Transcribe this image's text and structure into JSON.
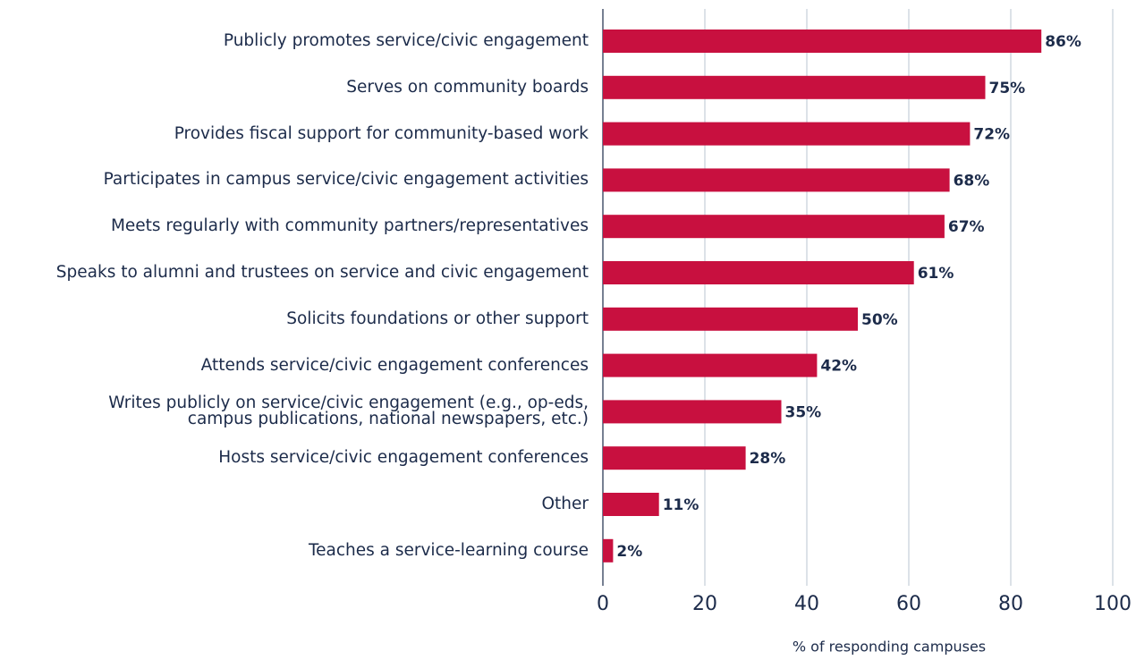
{
  "chart_data": {
    "type": "bar",
    "categories": [
      "Publicly promotes service/civic engagement",
      "Serves on community boards",
      "Provides fiscal support for community-based work",
      "Participates in campus service/civic engagement activities",
      "Meets regularly with community partners/representatives",
      "Speaks to alumni and trustees on service and civic engagement",
      "Solicits foundations or other support",
      "Attends service/civic engagement conferences",
      "Writes publicly on service/civic engagement (e.g., op-eds,\ncampus publications, national newspapers, etc.)",
      "Hosts service/civic engagement conferences",
      "Other",
      "Teaches a service-learning course"
    ],
    "values": [
      86,
      75,
      72,
      68,
      67,
      61,
      50,
      42,
      35,
      28,
      11,
      2
    ],
    "value_labels": [
      "86%",
      "75%",
      "72%",
      "68%",
      "67%",
      "61%",
      "50%",
      "42%",
      "35%",
      "28%",
      "11%",
      "2%"
    ],
    "color": "#c8103f",
    "x_label": "% of responding campuses",
    "xlim": [
      0,
      100
    ],
    "xticks": [
      0,
      20,
      40,
      60,
      80,
      100
    ],
    "grid": true
  }
}
